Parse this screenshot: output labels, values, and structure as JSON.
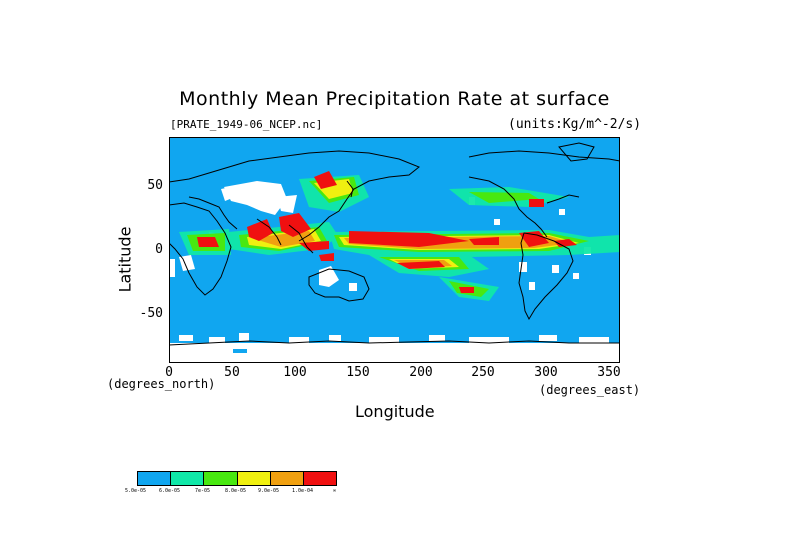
{
  "title": "Monthly Mean Precipitation Rate at surface",
  "subtitle_left": "[PRATE_1949-06_NCEP.nc]",
  "subtitle_right": "(units:Kg/m^-2/s)",
  "axes": {
    "ylabel": "Latitude",
    "xlabel": "Longitude",
    "x_unit": "(degrees_east)",
    "y_unit": "(degrees_north)",
    "x_ticks": [
      "0",
      "50",
      "100",
      "150",
      "200",
      "250",
      "300",
      "350"
    ],
    "y_ticks": [
      "50",
      "0",
      "-50"
    ],
    "x_range": [
      0,
      357.5
    ],
    "y_range": [
      -88,
      88
    ]
  },
  "legend": {
    "colors": [
      "#10a6f0",
      "#10e8a8",
      "#48e810",
      "#f0f010",
      "#f0a010",
      "#f01010"
    ],
    "labels": [
      "5.0e-05",
      "6.0e-05",
      "7e-05",
      "8.0e-05",
      "9.0e-05",
      "1.0e-04",
      "∞"
    ]
  },
  "colors": {
    "ocean_background": "#10a6f0",
    "missing": "#ffffff",
    "coastline": "#000000"
  }
}
